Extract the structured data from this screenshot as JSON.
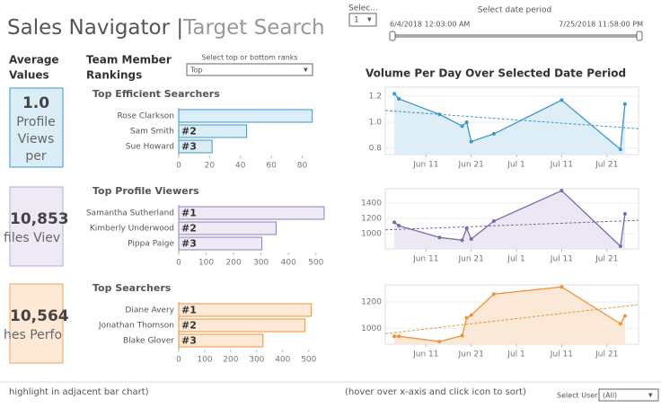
{
  "header": {
    "title": "Sales Navigator |",
    "subtitle": "Target Search"
  },
  "controls": {
    "select_label": "Selec...",
    "select_value": "1",
    "date_label": "Select date period",
    "date_start": "6/4/2018 12:03:00 AM",
    "date_end": "7/25/2018 11:58:00 PM",
    "rank_label": "Select top or bottom ranks",
    "rank_value": "Top",
    "user_label": "Select User",
    "user_value": "(All)"
  },
  "sections": {
    "average": [
      "Average",
      "Values"
    ],
    "rankings": [
      "Team Member",
      "Rankings"
    ],
    "volume": "Volume Per Day Over Selected Date Period"
  },
  "kpis": [
    {
      "value": "1.0",
      "label_lines": [
        "Profile",
        "Views",
        "per"
      ],
      "color": "#3a97c9",
      "fill_color": "#dbeef8"
    },
    {
      "value": "10,853",
      "label_lines": [
        "files Viev"
      ],
      "color": "#b8a9d6",
      "fill_color": "#efe9f6"
    },
    {
      "value": "10,564",
      "label_lines": [
        "hes Perfo"
      ],
      "color": "#f0a35e",
      "fill_color": "#fde9d6"
    }
  ],
  "footer": {
    "left": "highlight in adjacent bar chart)",
    "right": "(hover over x-axis and click icon to sort)"
  },
  "chart_data": [
    {
      "type": "barh",
      "title": "Top Efficient Searchers",
      "categories": [
        "Rose Clarkson",
        "Sam Smith",
        "Sue Howard"
      ],
      "values": [
        86.5,
        44,
        21.6
      ],
      "rank_labels": [
        null,
        "#2",
        "#3"
      ],
      "color": "#3a97c9",
      "fill_color": "#dbeef8",
      "xlim": [
        0,
        96
      ],
      "xticks": [
        0,
        20,
        40,
        60,
        80
      ]
    },
    {
      "type": "barh",
      "title": "Top Profile Viewers",
      "categories": [
        "Samantha Sutherland",
        "Kimberly Underwood",
        "Pippa Paige"
      ],
      "values": [
        530,
        355,
        303
      ],
      "rank_labels": [
        "#1",
        "#2",
        "#3"
      ],
      "color": "#8e7fbd",
      "fill_color": "#efe9f6",
      "xlim": [
        0,
        540
      ],
      "xticks": [
        0,
        100,
        200,
        300,
        400,
        500
      ]
    },
    {
      "type": "barh",
      "title": "Top Searchers",
      "categories": [
        "Diane Avery",
        "Jonathan Thomson",
        "Blake Glover"
      ],
      "values": [
        510,
        486,
        324
      ],
      "rank_labels": [
        "#1",
        "#2",
        "#3"
      ],
      "color": "#f0923b",
      "fill_color": "#fde9d6",
      "xlim": [
        0,
        570
      ],
      "xticks": [
        0,
        100,
        200,
        300,
        400,
        500
      ]
    },
    {
      "type": "line",
      "x": [
        "2018-06-04",
        "2018-06-05",
        "2018-06-14",
        "2018-06-19",
        "2018-06-20",
        "2018-06-21",
        "2018-06-26",
        "2018-07-11",
        "2018-07-24",
        "2018-07-25"
      ],
      "values": [
        1.22,
        1.18,
        1.06,
        0.97,
        1.0,
        0.85,
        0.91,
        1.17,
        0.79,
        1.14
      ],
      "trend": [
        1.09,
        0.95
      ],
      "color": "#3a97c9",
      "fill_color": "#deeef7",
      "xlim": [
        "2018-06-02",
        "2018-07-28"
      ],
      "xticks": [
        {
          "value": "2018-06-11",
          "label": "Jun 11"
        },
        {
          "value": "2018-06-21",
          "label": "Jun 21"
        },
        {
          "value": "2018-07-01",
          "label": "Jul 1"
        },
        {
          "value": "2018-07-11",
          "label": "Jul 11"
        },
        {
          "value": "2018-07-21",
          "label": "Jul 21"
        }
      ],
      "ylim": [
        0.75,
        1.27
      ],
      "yticks": [
        0.8,
        {
          "value": 1,
          "label": "1.0"
        },
        1.2
      ]
    },
    {
      "type": "line",
      "x": [
        "2018-06-04",
        "2018-06-05",
        "2018-06-14",
        "2018-06-19",
        "2018-06-20",
        "2018-06-21",
        "2018-06-26",
        "2018-07-11",
        "2018-07-24",
        "2018-07-25"
      ],
      "values": [
        1150,
        1105,
        950,
        915,
        1070,
        930,
        1165,
        1565,
        835,
        1260
      ],
      "trend": [
        1050,
        1175
      ],
      "color": "#7b6aa8",
      "fill_color": "#ebe7f3",
      "xlim": [
        "2018-06-02",
        "2018-07-28"
      ],
      "xticks": [
        {
          "value": "2018-06-11",
          "label": "Jun 11"
        },
        {
          "value": "2018-06-21",
          "label": "Jun 21"
        },
        {
          "value": "2018-07-01",
          "label": "Jul 1"
        },
        {
          "value": "2018-07-11",
          "label": "Jul 11"
        },
        {
          "value": "2018-07-21",
          "label": "Jul 21"
        }
      ],
      "ylim": [
        800,
        1590
      ],
      "yticks": [
        1000,
        1200,
        1400
      ]
    },
    {
      "type": "line",
      "x": [
        "2018-06-04",
        "2018-06-05",
        "2018-06-14",
        "2018-06-19",
        "2018-06-20",
        "2018-06-21",
        "2018-06-26",
        "2018-07-11",
        "2018-07-24",
        "2018-07-25"
      ],
      "values": [
        940,
        940,
        900,
        945,
        1080,
        1100,
        1260,
        1315,
        1035,
        1095
      ],
      "trend": [
        960,
        1180
      ],
      "color": "#f0923b",
      "fill_color": "#fbe8d6",
      "xlim": [
        "2018-06-02",
        "2018-07-28"
      ],
      "xticks": [
        {
          "value": "2018-06-11",
          "label": "Jun 11"
        },
        {
          "value": "2018-06-21",
          "label": "Jun 21"
        },
        {
          "value": "2018-07-01",
          "label": "Jul 1"
        },
        {
          "value": "2018-07-11",
          "label": "Jul 11"
        },
        {
          "value": "2018-07-21",
          "label": "Jul 21"
        }
      ],
      "ylim": [
        880,
        1330
      ],
      "yticks": [
        1000,
        1200
      ]
    }
  ]
}
